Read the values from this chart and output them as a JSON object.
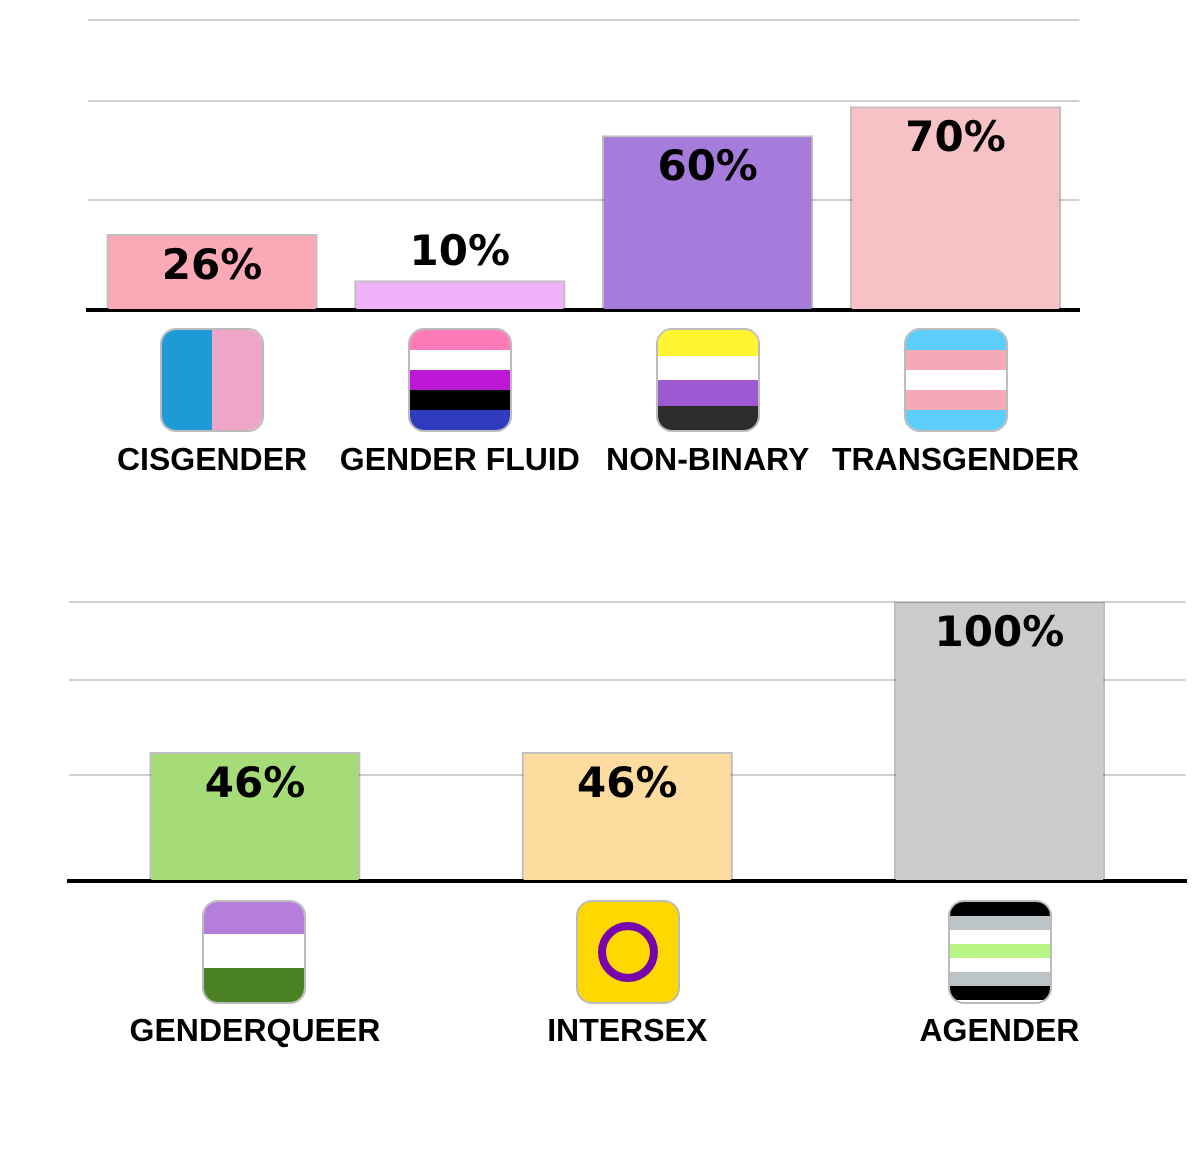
{
  "chart_data": [
    {
      "type": "bar",
      "categories": [
        "CISGENDER",
        "GENDER FLUID",
        "NON-BINARY",
        "TRANSGENDER"
      ],
      "values": [
        26,
        10,
        60,
        70
      ],
      "colors": [
        "#fca9b6",
        "#f0b2f8",
        "#a57cdc",
        "#f7c2c6"
      ],
      "value_labels": [
        "26%",
        "10%",
        "60%",
        "70%"
      ],
      "ylim": [
        0,
        100
      ],
      "yticks": [
        {
          "value": 0,
          "label": null
        },
        {
          "value": 38,
          "label": null
        },
        {
          "value": 72,
          "label": null
        },
        {
          "value": 100,
          "label": null
        }
      ],
      "grid": "y"
    },
    {
      "type": "bar",
      "categories": [
        "GENDERQUEER",
        "INTERSEX",
        "AGENDER"
      ],
      "values": [
        46,
        46,
        100
      ],
      "colors": [
        "#a6dc78",
        "#fedca0",
        "#cbcbcb"
      ],
      "value_labels": [
        "46%",
        "46%",
        "100%"
      ],
      "ylim": [
        0,
        100
      ],
      "yticks": [
        {
          "value": 0,
          "label": null
        },
        {
          "value": 38,
          "label": null
        },
        {
          "value": 72,
          "label": null
        },
        {
          "value": 100,
          "label": null
        }
      ],
      "grid": "y"
    }
  ]
}
